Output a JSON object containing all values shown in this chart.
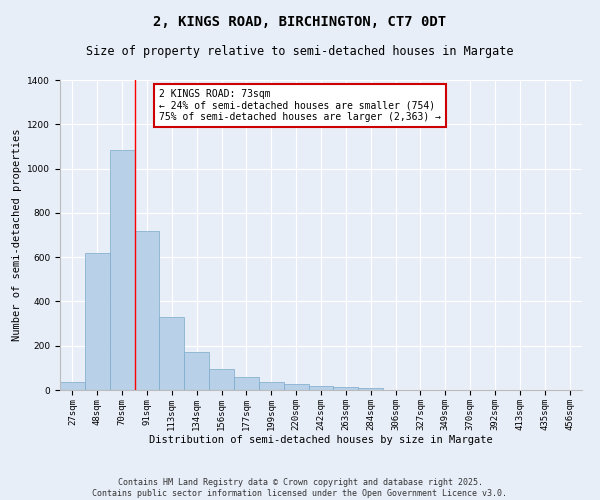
{
  "title1": "2, KINGS ROAD, BIRCHINGTON, CT7 0DT",
  "title2": "Size of property relative to semi-detached houses in Margate",
  "xlabel": "Distribution of semi-detached houses by size in Margate",
  "ylabel": "Number of semi-detached properties",
  "bar_color": "#b8d0e8",
  "bar_edge_color": "#7aaaca",
  "background_color": "#e8eef8",
  "grid_color": "#ffffff",
  "categories": [
    "27sqm",
    "48sqm",
    "70sqm",
    "91sqm",
    "113sqm",
    "134sqm",
    "156sqm",
    "177sqm",
    "199sqm",
    "220sqm",
    "242sqm",
    "263sqm",
    "284sqm",
    "306sqm",
    "327sqm",
    "349sqm",
    "370sqm",
    "392sqm",
    "413sqm",
    "435sqm",
    "456sqm"
  ],
  "values": [
    35,
    620,
    1085,
    720,
    330,
    170,
    95,
    60,
    38,
    25,
    18,
    15,
    10,
    0,
    0,
    0,
    0,
    0,
    0,
    0,
    0
  ],
  "ylim": [
    0,
    1400
  ],
  "yticks": [
    0,
    200,
    400,
    600,
    800,
    1000,
    1200,
    1400
  ],
  "property_line_bin": 2,
  "annotation_text": "2 KINGS ROAD: 73sqm\n← 24% of semi-detached houses are smaller (754)\n75% of semi-detached houses are larger (2,363) →",
  "annotation_box_color": "#ffffff",
  "annotation_box_edge_color": "#cc0000",
  "footer1": "Contains HM Land Registry data © Crown copyright and database right 2025.",
  "footer2": "Contains public sector information licensed under the Open Government Licence v3.0.",
  "title_fontsize": 10,
  "subtitle_fontsize": 8.5,
  "axis_label_fontsize": 7.5,
  "tick_fontsize": 6.5,
  "annotation_fontsize": 7,
  "footer_fontsize": 6
}
